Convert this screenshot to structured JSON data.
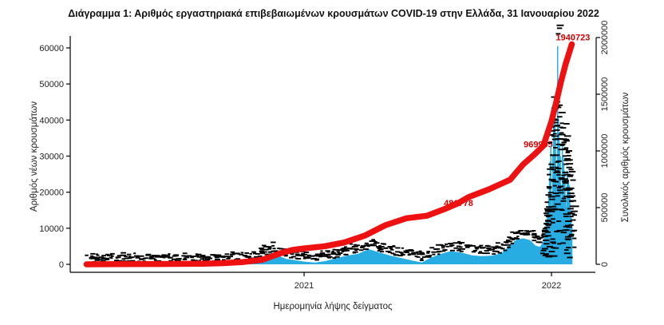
{
  "title": "Διάγραμμα 1: Αριθμός εργαστηριακά επιβεβαιωμένων κρουσμάτων COVID-19 στην Ελλάδα, 31 Ιανουαρίου 2022",
  "chart_data": {
    "type": "bar",
    "subtype": "bar-plus-cumulative-line",
    "title": "Διάγραμμα 1: Αριθμός εργαστηριακά επιβεβαιωμένων κρουσμάτων COVID-19 στην Ελλάδα, 31 Ιανουαρίου 2022",
    "xlabel": "Ημερομηνία λήψης δείγματος",
    "ylabel_left": "Αριθμός νέων κρουσμάτων",
    "ylabel_right": "Συνολικός αριθμός κρουσμάτων",
    "x_tick_labels": [
      "2021",
      "2022"
    ],
    "y_left_ticks": [
      0,
      10000,
      20000,
      30000,
      40000,
      50000,
      60000
    ],
    "y_right_ticks": [
      0,
      500000,
      1000000,
      1500000,
      2000000
    ],
    "y_left_range": [
      0,
      60000
    ],
    "y_right_range": [
      0,
      2000000
    ],
    "grid": false,
    "legend": "none",
    "bar_color": "#29ade3",
    "line_color": "#ee1111",
    "annotation_color": "#d40000",
    "point_label_color": "#000000",
    "series": [
      {
        "name": "daily_new_cases",
        "type": "bar",
        "axis": "left",
        "points": [
          [
            "2020-02-15",
            5
          ],
          [
            "2020-03-15",
            60
          ],
          [
            "2020-04-05",
            90
          ],
          [
            "2020-05-01",
            25
          ],
          [
            "2020-06-15",
            20
          ],
          [
            "2020-07-15",
            40
          ],
          [
            "2020-08-15",
            220
          ],
          [
            "2020-09-15",
            330
          ],
          [
            "2020-10-10",
            480
          ],
          [
            "2020-10-25",
            900
          ],
          [
            "2020-11-06",
            2500
          ],
          [
            "2020-11-13",
            3350
          ],
          [
            "2020-11-21",
            2600
          ],
          [
            "2020-12-05",
            1500
          ],
          [
            "2020-12-20",
            1100
          ],
          [
            "2021-01-03",
            700
          ],
          [
            "2021-01-17",
            480
          ],
          [
            "2021-02-02",
            900
          ],
          [
            "2021-02-16",
            1600
          ],
          [
            "2021-03-05",
            2400
          ],
          [
            "2021-03-22",
            2900
          ],
          [
            "2021-04-06",
            4200
          ],
          [
            "2021-04-20",
            3400
          ],
          [
            "2021-05-08",
            2400
          ],
          [
            "2021-05-25",
            1700
          ],
          [
            "2021-06-10",
            1000
          ],
          [
            "2021-06-24",
            500
          ],
          [
            "2021-07-08",
            1900
          ],
          [
            "2021-07-22",
            2900
          ],
          [
            "2021-08-05",
            3600
          ],
          [
            "2021-08-20",
            3300
          ],
          [
            "2021-09-05",
            2500
          ],
          [
            "2021-09-20",
            2250
          ],
          [
            "2021-10-05",
            2400
          ],
          [
            "2021-10-20",
            3100
          ],
          [
            "2021-11-01",
            5300
          ],
          [
            "2021-11-10",
            6800
          ],
          [
            "2021-11-20",
            7200
          ],
          [
            "2021-11-30",
            6700
          ],
          [
            "2021-12-08",
            5200
          ],
          [
            "2021-12-15",
            4800
          ],
          [
            "2021-12-21",
            6500
          ],
          [
            "2021-12-24",
            10000
          ],
          [
            "2021-12-27",
            16000
          ],
          [
            "2021-12-29",
            24000
          ],
          [
            "2021-12-31",
            33000
          ],
          [
            "2022-01-01",
            18000
          ],
          [
            "2022-01-02",
            14000
          ],
          [
            "2022-01-03",
            30000
          ],
          [
            "2022-01-04",
            42000
          ],
          [
            "2022-01-05",
            38500
          ],
          [
            "2022-01-06",
            40500
          ],
          [
            "2022-01-07",
            35000
          ],
          [
            "2022-01-08",
            25000
          ],
          [
            "2022-01-09",
            20000
          ],
          [
            "2022-01-10",
            60500
          ],
          [
            "2022-01-11",
            41000
          ],
          [
            "2022-01-12",
            36500
          ],
          [
            "2022-01-13",
            33500
          ],
          [
            "2022-01-14",
            30000
          ],
          [
            "2022-01-15",
            22000
          ],
          [
            "2022-01-16",
            18000
          ],
          [
            "2022-01-17",
            33000
          ],
          [
            "2022-01-18",
            30000
          ],
          [
            "2022-01-19",
            28000
          ],
          [
            "2022-01-20",
            26000
          ],
          [
            "2022-01-21",
            24000
          ],
          [
            "2022-01-22",
            18000
          ],
          [
            "2022-01-23",
            16000
          ],
          [
            "2022-01-24",
            26000
          ],
          [
            "2022-01-25",
            24000
          ],
          [
            "2022-01-26",
            23000
          ],
          [
            "2022-01-27",
            22000
          ],
          [
            "2022-01-28",
            20000
          ],
          [
            "2022-01-29",
            15000
          ],
          [
            "2022-01-30",
            13000
          ],
          [
            "2022-01-31",
            11000
          ]
        ]
      },
      {
        "name": "cumulative_cases",
        "type": "line",
        "axis": "right",
        "points": [
          [
            "2020-02-15",
            0
          ],
          [
            "2020-04-01",
            1300
          ],
          [
            "2020-06-01",
            2900
          ],
          [
            "2020-08-01",
            4600
          ],
          [
            "2020-09-01",
            10000
          ],
          [
            "2020-10-01",
            19000
          ],
          [
            "2020-11-01",
            40000
          ],
          [
            "2020-11-15",
            72000
          ],
          [
            "2020-12-01",
            105000
          ],
          [
            "2020-12-15",
            127000
          ],
          [
            "2021-01-01",
            140000
          ],
          [
            "2021-02-01",
            160000
          ],
          [
            "2021-03-01",
            192000
          ],
          [
            "2021-04-01",
            254000
          ],
          [
            "2021-05-01",
            345000
          ],
          [
            "2021-06-01",
            406000
          ],
          [
            "2021-07-01",
            428000
          ],
          [
            "2021-07-27",
            486778
          ],
          [
            "2021-08-15",
            535000
          ],
          [
            "2021-09-01",
            594000
          ],
          [
            "2021-10-01",
            662000
          ],
          [
            "2021-11-01",
            746000
          ],
          [
            "2021-11-20",
            880000
          ],
          [
            "2021-12-07",
            969995
          ],
          [
            "2021-12-20",
            1045000
          ],
          [
            "2022-01-01",
            1260000
          ],
          [
            "2022-01-08",
            1430000
          ],
          [
            "2022-01-15",
            1610000
          ],
          [
            "2022-01-22",
            1770000
          ],
          [
            "2022-01-31",
            1940723
          ]
        ]
      }
    ],
    "annotations": [
      {
        "text": "486778",
        "date": "2021-07-27",
        "value": 486778
      },
      {
        "text": "969995",
        "date": "2021-12-07",
        "value": 969995
      },
      {
        "text": "1940723",
        "date": "2022-01-31",
        "value": 1940723
      }
    ]
  }
}
